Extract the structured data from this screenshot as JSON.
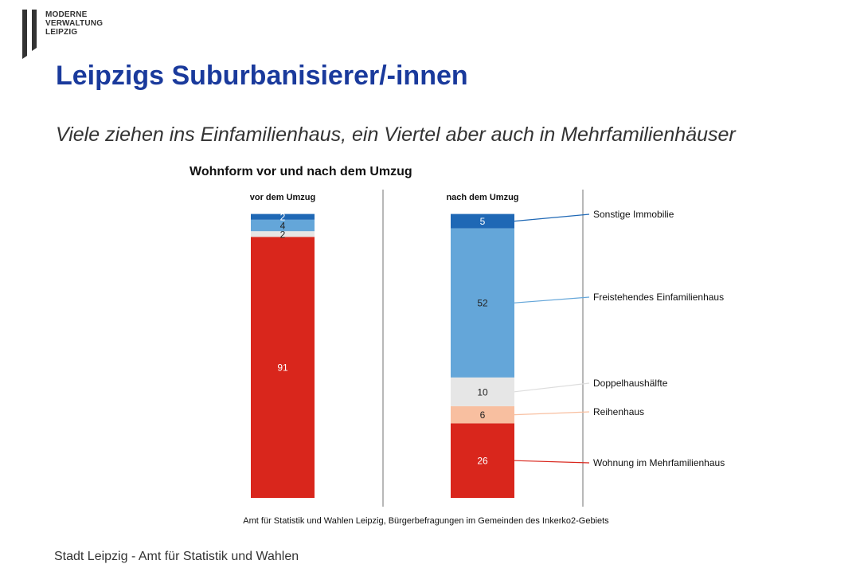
{
  "logo": {
    "lines": [
      "MODERNE",
      "VERWALTUNG",
      "LEIPZIG"
    ]
  },
  "title": "Leipzigs Suburbanisierer/-innen",
  "subtitle": "Viele ziehen ins Einfamilienhaus, ein Viertel aber auch in Mehrfamilienhäuser",
  "footer": "Stadt Leipzig  -  Amt für Statistik und Wahlen",
  "chart_data": {
    "type": "bar",
    "stacked": true,
    "title": "Wohnform vor und nach dem Umzug",
    "categories": [
      "vor dem Umzug",
      "nach dem Umzug"
    ],
    "series": [
      {
        "name": "Wohnung im Mehrfamilienhaus",
        "color": "#d9261c",
        "values": [
          91,
          26
        ]
      },
      {
        "name": "Reihenhaus",
        "color": "#f8bfa0",
        "values": [
          0,
          6
        ]
      },
      {
        "name": "Doppelhaushälfte",
        "color": "#e6e6e6",
        "values": [
          2,
          10
        ]
      },
      {
        "name": "Freistehendes Einfamilienhaus",
        "color": "#64a6d9",
        "values": [
          4,
          52
        ]
      },
      {
        "name": "Sonstige Immobilie",
        "color": "#1f68b5",
        "values": [
          2,
          5
        ]
      }
    ],
    "legend": "right",
    "source": "Amt für Statistik und Wahlen Leipzig, Bürgerbefragungen im Gemeinden des Inkerko2-Gebiets"
  }
}
